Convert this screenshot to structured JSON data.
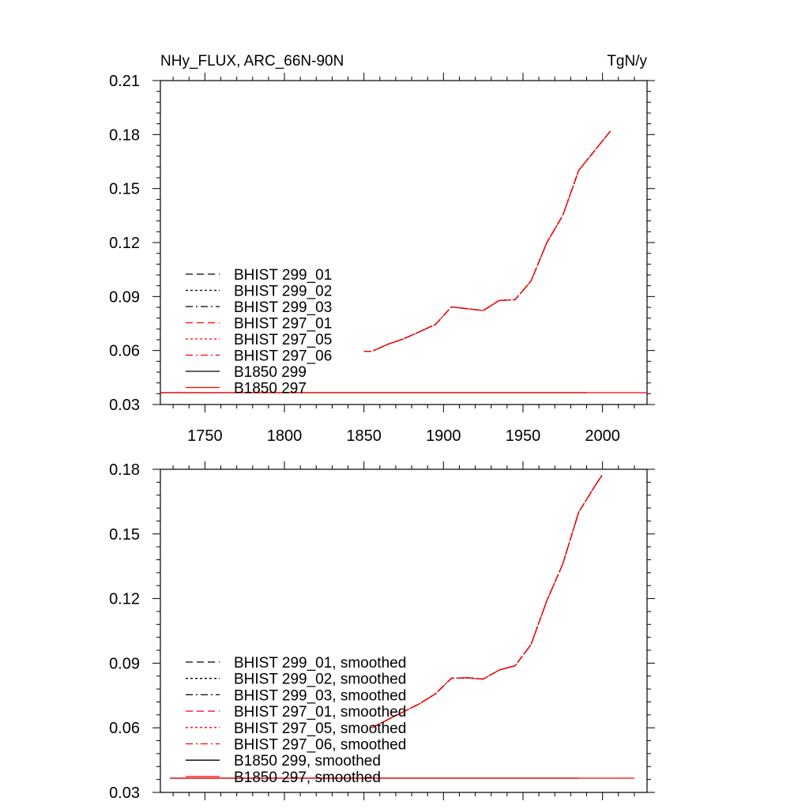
{
  "chart_data": [
    {
      "type": "line",
      "title": "NHy_FLUX, ARC_66N-90N",
      "units": "TgN/y",
      "xlim": [
        1722,
        2028
      ],
      "ylim": [
        0.03,
        0.21
      ],
      "x_ticks": [
        1750,
        1800,
        1850,
        1900,
        1950,
        2000
      ],
      "x_tick_labels": [
        "1750",
        "1800",
        "1850",
        "1900",
        "1950",
        "2000"
      ],
      "y_ticks": [
        0.03,
        0.06,
        0.09,
        0.12,
        0.15,
        0.18,
        0.21
      ],
      "y_tick_labels": [
        "0.03",
        "0.06",
        "0.09",
        "0.12",
        "0.15",
        "0.18",
        "0.21"
      ],
      "legend": {
        "placement": "left-middle",
        "entries": [
          {
            "label": "BHIST 299_01",
            "color": "#000000",
            "dash": "dashed"
          },
          {
            "label": "BHIST 299_02",
            "color": "#000000",
            "dash": "dotted"
          },
          {
            "label": "BHIST 299_03",
            "color": "#000000",
            "dash": "dashdot"
          },
          {
            "label": "BHIST 297_01",
            "color": "#ff0000",
            "dash": "dashed"
          },
          {
            "label": "BHIST 297_05",
            "color": "#ff0000",
            "dash": "dotted"
          },
          {
            "label": "BHIST 297_06",
            "color": "#ff0000",
            "dash": "dashdot"
          },
          {
            "label": "B1850 299",
            "color": "#000000",
            "dash": "solid"
          },
          {
            "label": "B1850 297",
            "color": "#ff0000",
            "dash": "solid"
          }
        ]
      },
      "series": [
        {
          "name": "BHIST 299_01",
          "color": "#000000",
          "dash": "dashed",
          "x": [
            1850,
            1855,
            1865,
            1875,
            1885,
            1895,
            1905,
            1915,
            1925,
            1935,
            1945,
            1955,
            1965,
            1975,
            1985,
            1995,
            2005
          ],
          "y": [
            0.0595,
            0.0595,
            0.0635,
            0.0665,
            0.0705,
            0.0745,
            0.0842,
            0.0832,
            0.0822,
            0.0878,
            0.0882,
            0.0985,
            0.12,
            0.135,
            0.16,
            0.171,
            0.182
          ]
        },
        {
          "name": "BHIST 299_02",
          "color": "#000000",
          "dash": "dotted",
          "x": [
            1850,
            1855,
            1865,
            1875,
            1885,
            1895,
            1905,
            1915,
            1925,
            1935,
            1945,
            1955,
            1965,
            1975,
            1985,
            1995,
            2005
          ],
          "y": [
            0.0595,
            0.0595,
            0.0635,
            0.0665,
            0.0705,
            0.0745,
            0.0842,
            0.0832,
            0.0822,
            0.0878,
            0.0882,
            0.0985,
            0.12,
            0.135,
            0.16,
            0.171,
            0.182
          ]
        },
        {
          "name": "BHIST 299_03",
          "color": "#000000",
          "dash": "dashdot",
          "x": [
            1850,
            1855,
            1865,
            1875,
            1885,
            1895,
            1905,
            1915,
            1925,
            1935,
            1945,
            1955,
            1965,
            1975,
            1985,
            1995,
            2005
          ],
          "y": [
            0.0595,
            0.0595,
            0.0635,
            0.0665,
            0.0705,
            0.0745,
            0.0842,
            0.0832,
            0.0822,
            0.0878,
            0.0882,
            0.0985,
            0.12,
            0.135,
            0.16,
            0.171,
            0.182
          ]
        },
        {
          "name": "BHIST 297_01",
          "color": "#ff0000",
          "dash": "dashed",
          "x": [
            1850,
            1855,
            1865,
            1875,
            1885,
            1895,
            1905,
            1915,
            1925,
            1935,
            1945,
            1955,
            1965,
            1975,
            1985,
            1995,
            2005
          ],
          "y": [
            0.0595,
            0.0595,
            0.0635,
            0.0665,
            0.0705,
            0.0745,
            0.0842,
            0.0832,
            0.0822,
            0.0878,
            0.0882,
            0.0985,
            0.12,
            0.135,
            0.16,
            0.171,
            0.182
          ]
        },
        {
          "name": "BHIST 297_05",
          "color": "#ff0000",
          "dash": "dotted",
          "x": [
            1850,
            1855,
            1865,
            1875,
            1885,
            1895,
            1905,
            1915,
            1925,
            1935,
            1945,
            1955,
            1965,
            1975,
            1985,
            1995,
            2005
          ],
          "y": [
            0.0595,
            0.0595,
            0.0635,
            0.0665,
            0.0705,
            0.0745,
            0.0842,
            0.0832,
            0.0822,
            0.0878,
            0.0882,
            0.0985,
            0.12,
            0.135,
            0.16,
            0.171,
            0.182
          ]
        },
        {
          "name": "BHIST 297_06",
          "color": "#ff0000",
          "dash": "dashdot",
          "x": [
            1850,
            1855,
            1865,
            1875,
            1885,
            1895,
            1905,
            1915,
            1925,
            1935,
            1945,
            1955,
            1965,
            1975,
            1985,
            1995,
            2005
          ],
          "y": [
            0.0595,
            0.0595,
            0.0635,
            0.0665,
            0.0705,
            0.0745,
            0.0842,
            0.0832,
            0.0822,
            0.0878,
            0.0882,
            0.0985,
            0.12,
            0.135,
            0.16,
            0.171,
            0.182
          ]
        },
        {
          "name": "B1850 299",
          "color": "#000000",
          "dash": "solid",
          "x": [
            1722,
            1990
          ],
          "y": [
            0.0366,
            0.0366
          ]
        },
        {
          "name": "B1850 297",
          "color": "#ff0000",
          "dash": "solid",
          "x": [
            1722,
            2028
          ],
          "y": [
            0.0366,
            0.0366
          ]
        }
      ]
    },
    {
      "type": "line",
      "xlim": [
        1722,
        2028
      ],
      "ylim": [
        0.03,
        0.18
      ],
      "x_ticks": [
        1750,
        1800,
        1850,
        1900,
        1950,
        2000
      ],
      "y_ticks": [
        0.03,
        0.06,
        0.09,
        0.12,
        0.15,
        0.18
      ],
      "y_tick_labels": [
        "0.03",
        "0.06",
        "0.09",
        "0.12",
        "0.15",
        "0.18"
      ],
      "legend": {
        "placement": "left-bottom",
        "entries": [
          {
            "label": "BHIST 299_01, smoothed",
            "color": "#000000",
            "dash": "dashed"
          },
          {
            "label": "BHIST 299_02, smoothed",
            "color": "#000000",
            "dash": "dotted"
          },
          {
            "label": "BHIST 299_03, smoothed",
            "color": "#000000",
            "dash": "dashdot"
          },
          {
            "label": "BHIST 297_01, smoothed",
            "color": "#ff0000",
            "dash": "dashed"
          },
          {
            "label": "BHIST 297_05, smoothed",
            "color": "#ff0000",
            "dash": "dotted"
          },
          {
            "label": "BHIST 297_06, smoothed",
            "color": "#ff0000",
            "dash": "dashdot"
          },
          {
            "label": "B1850 299, smoothed",
            "color": "#000000",
            "dash": "solid"
          },
          {
            "label": "B1850 297, smoothed",
            "color": "#ff0000",
            "dash": "solid"
          }
        ]
      },
      "series": [
        {
          "name": "BHIST 299_01, smoothed",
          "color": "#000000",
          "dash": "dashed",
          "x": [
            1855,
            1865,
            1875,
            1885,
            1895,
            1905,
            1915,
            1925,
            1935,
            1945,
            1955,
            1965,
            1975,
            1985,
            1995,
            2000
          ],
          "y": [
            0.06,
            0.0638,
            0.0675,
            0.0712,
            0.0758,
            0.083,
            0.0832,
            0.0826,
            0.0868,
            0.0888,
            0.0985,
            0.119,
            0.136,
            0.16,
            0.172,
            0.1775
          ]
        },
        {
          "name": "BHIST 299_02, smoothed",
          "color": "#000000",
          "dash": "dotted",
          "x": [
            1855,
            1865,
            1875,
            1885,
            1895,
            1905,
            1915,
            1925,
            1935,
            1945,
            1955,
            1965,
            1975,
            1985,
            1995,
            2000
          ],
          "y": [
            0.06,
            0.0638,
            0.0675,
            0.0712,
            0.0758,
            0.083,
            0.0832,
            0.0826,
            0.0868,
            0.0888,
            0.0985,
            0.119,
            0.136,
            0.16,
            0.172,
            0.1775
          ]
        },
        {
          "name": "BHIST 299_03, smoothed",
          "color": "#000000",
          "dash": "dashdot",
          "x": [
            1855,
            1865,
            1875,
            1885,
            1895,
            1905,
            1915,
            1925,
            1935,
            1945,
            1955,
            1965,
            1975,
            1985,
            1995,
            2000
          ],
          "y": [
            0.06,
            0.0638,
            0.0675,
            0.0712,
            0.0758,
            0.083,
            0.0832,
            0.0826,
            0.0868,
            0.0888,
            0.0985,
            0.119,
            0.136,
            0.16,
            0.172,
            0.1775
          ]
        },
        {
          "name": "BHIST 297_01, smoothed",
          "color": "#ff0000",
          "dash": "dashed",
          "x": [
            1855,
            1865,
            1875,
            1885,
            1895,
            1905,
            1915,
            1925,
            1935,
            1945,
            1955,
            1965,
            1975,
            1985,
            1995,
            2000
          ],
          "y": [
            0.06,
            0.0638,
            0.0675,
            0.0712,
            0.0758,
            0.083,
            0.0832,
            0.0826,
            0.0868,
            0.0888,
            0.0985,
            0.119,
            0.136,
            0.16,
            0.172,
            0.1775
          ]
        },
        {
          "name": "BHIST 297_05, smoothed",
          "color": "#ff0000",
          "dash": "dotted",
          "x": [
            1855,
            1865,
            1875,
            1885,
            1895,
            1905,
            1915,
            1925,
            1935,
            1945,
            1955,
            1965,
            1975,
            1985,
            1995,
            2000
          ],
          "y": [
            0.06,
            0.0638,
            0.0675,
            0.0712,
            0.0758,
            0.083,
            0.0832,
            0.0826,
            0.0868,
            0.0888,
            0.0985,
            0.119,
            0.136,
            0.16,
            0.172,
            0.1775
          ]
        },
        {
          "name": "BHIST 297_06, smoothed",
          "color": "#ff0000",
          "dash": "dashdot",
          "x": [
            1855,
            1865,
            1875,
            1885,
            1895,
            1905,
            1915,
            1925,
            1935,
            1945,
            1955,
            1965,
            1975,
            1985,
            1995,
            2000
          ],
          "y": [
            0.06,
            0.0638,
            0.0675,
            0.0712,
            0.0758,
            0.083,
            0.0832,
            0.0826,
            0.0868,
            0.0888,
            0.0985,
            0.119,
            0.136,
            0.16,
            0.172,
            0.1775
          ]
        },
        {
          "name": "B1850 299, smoothed",
          "color": "#000000",
          "dash": "solid",
          "x": [
            1728,
            1985
          ],
          "y": [
            0.0366,
            0.0366
          ]
        },
        {
          "name": "B1850 297, smoothed",
          "color": "#ff0000",
          "dash": "solid",
          "x": [
            1728,
            2020
          ],
          "y": [
            0.0366,
            0.0366
          ]
        }
      ]
    }
  ]
}
